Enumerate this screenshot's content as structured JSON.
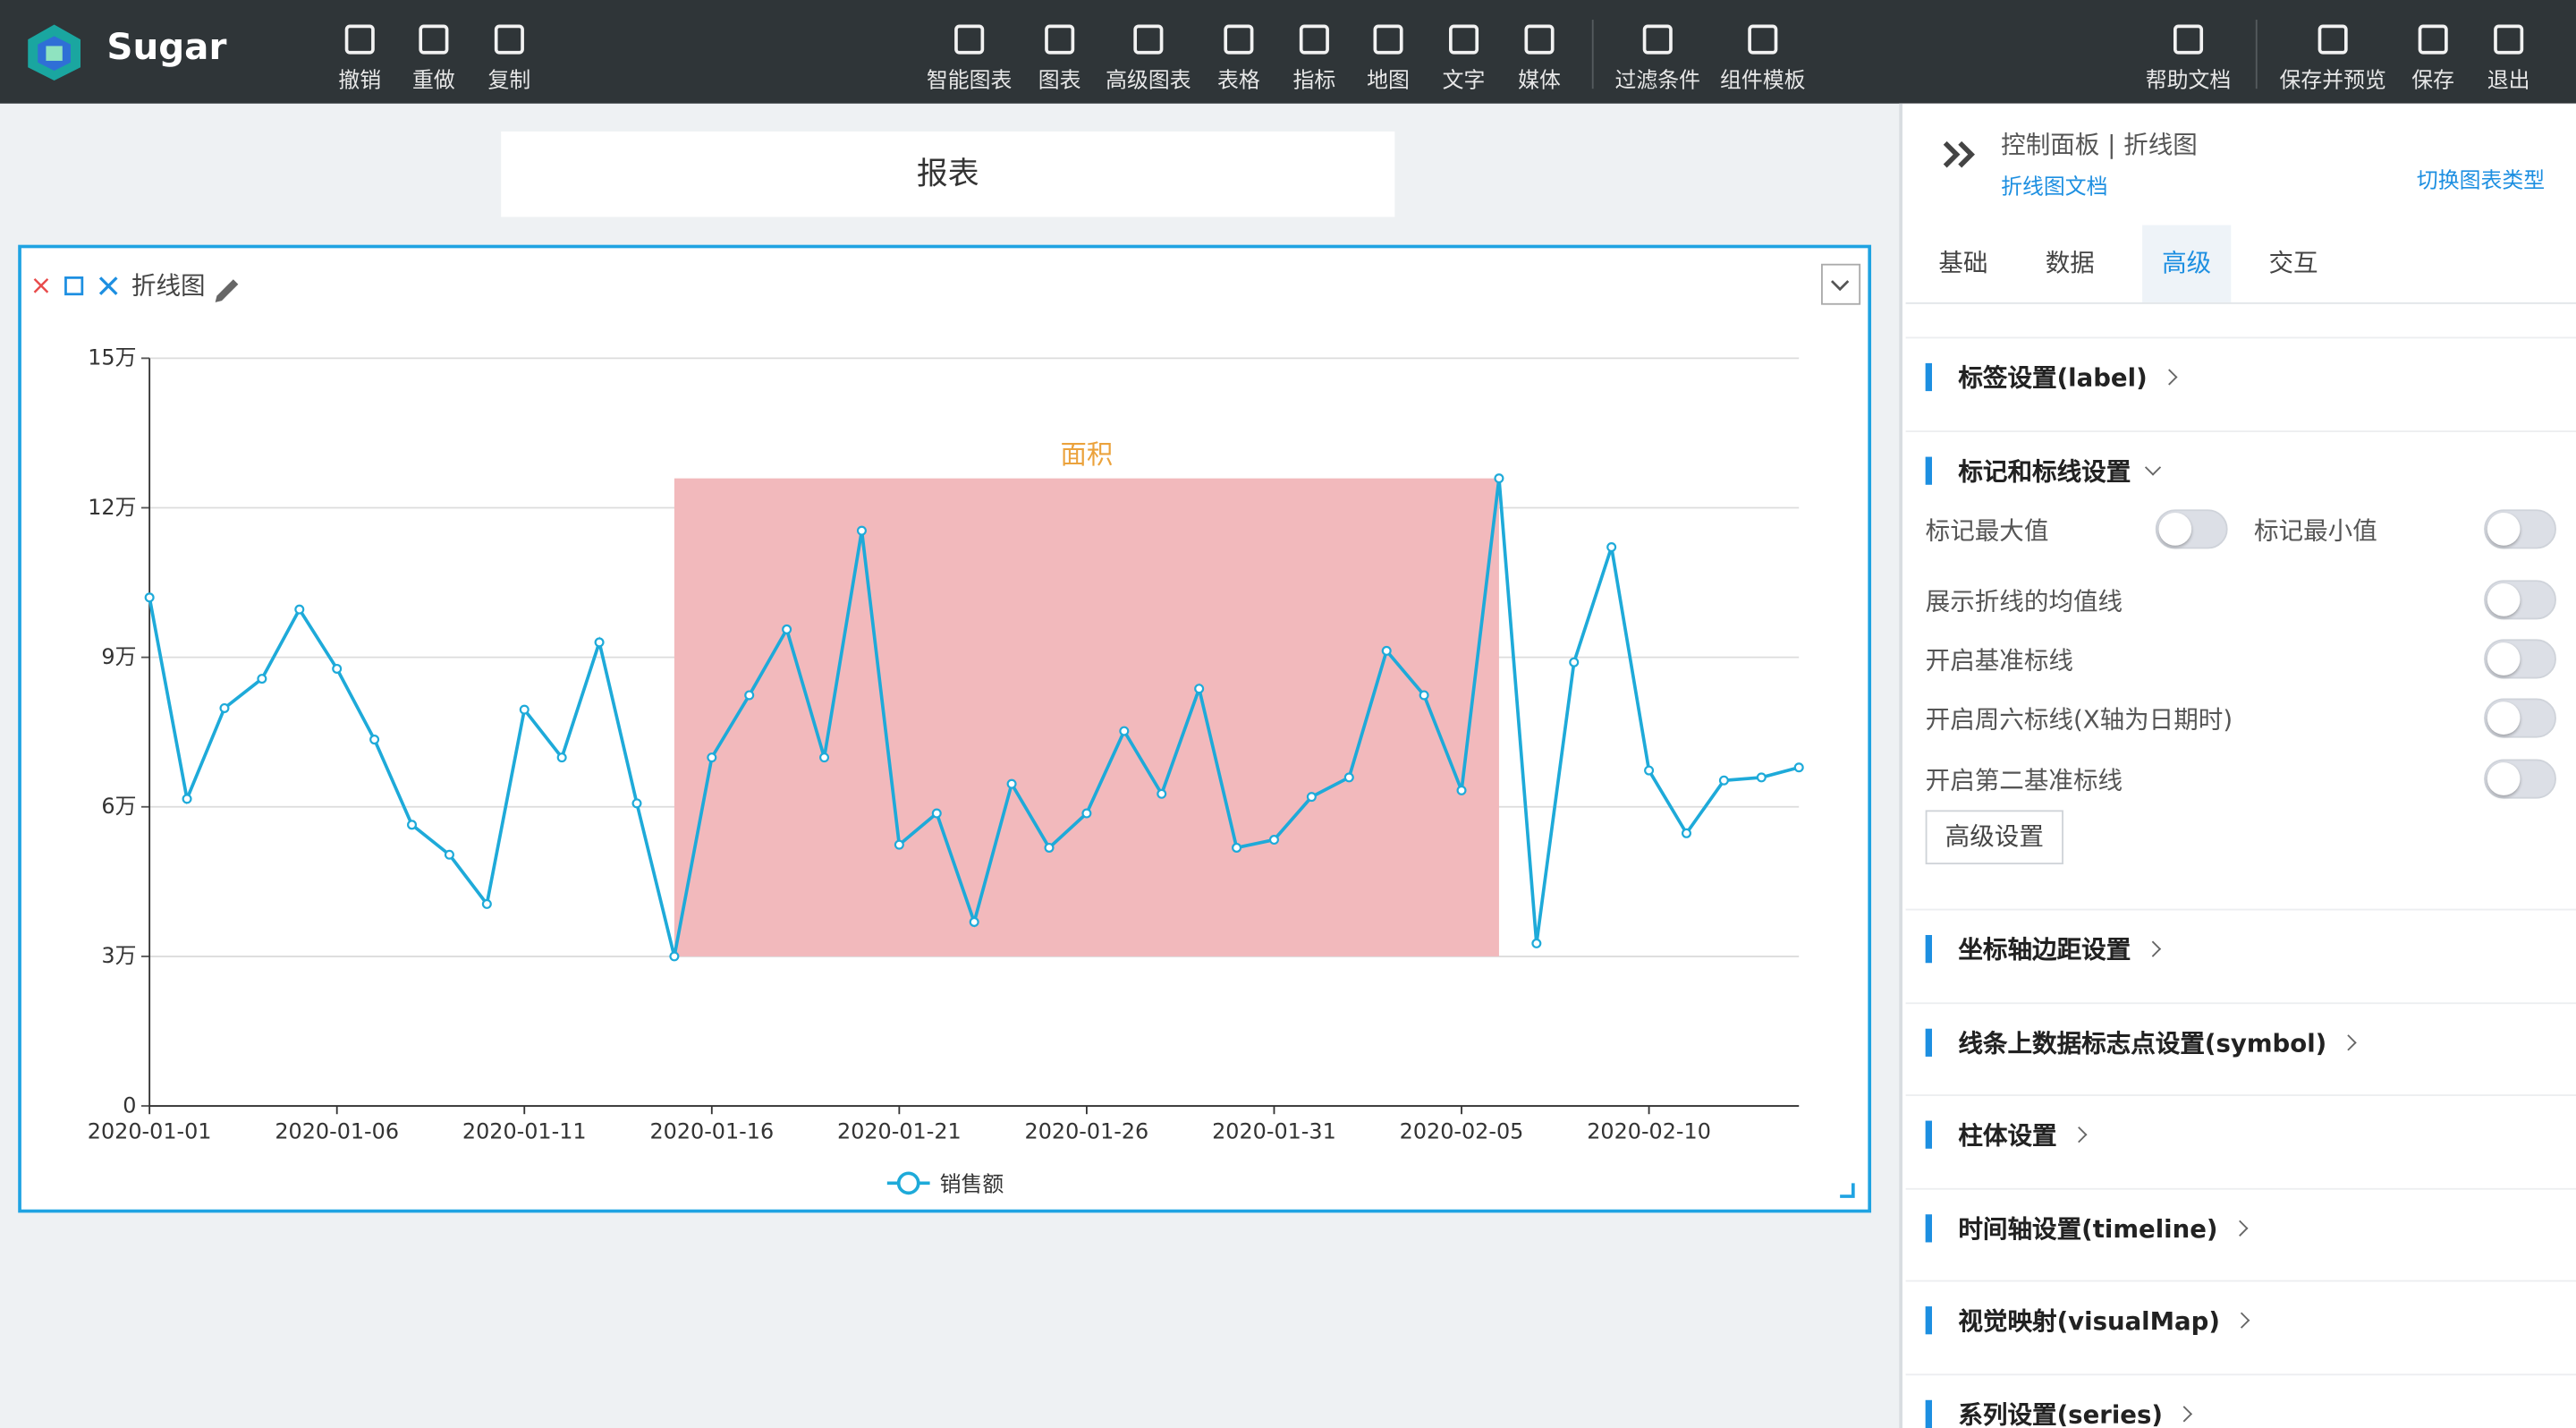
{
  "app": {
    "name": "Sugar"
  },
  "toolbar": {
    "left": [
      "撤销",
      "重做",
      "复制"
    ],
    "center": [
      "智能图表",
      "图表",
      "高级图表",
      "表格",
      "指标",
      "地图",
      "文字",
      "媒体"
    ],
    "center2": [
      "过滤条件",
      "组件模板"
    ],
    "right": [
      "帮助文档"
    ],
    "right2": [
      "保存并预览",
      "保存",
      "退出"
    ]
  },
  "report_title": "报表",
  "widget_title": "折线图",
  "chart_data": {
    "type": "line",
    "x": [
      "2020-01-01",
      "2020-01-02",
      "2020-01-03",
      "2020-01-04",
      "2020-01-05",
      "2020-01-06",
      "2020-01-07",
      "2020-01-08",
      "2020-01-09",
      "2020-01-10",
      "2020-01-11",
      "2020-01-12",
      "2020-01-13",
      "2020-01-14",
      "2020-01-15",
      "2020-01-16",
      "2020-01-17",
      "2020-01-18",
      "2020-01-19",
      "2020-01-20",
      "2020-01-21",
      "2020-01-22",
      "2020-01-23",
      "2020-01-24",
      "2020-01-25",
      "2020-01-26",
      "2020-01-27",
      "2020-01-28",
      "2020-01-29",
      "2020-01-30",
      "2020-01-31",
      "2020-02-01",
      "2020-02-02",
      "2020-02-03",
      "2020-02-04",
      "2020-02-05",
      "2020-02-06",
      "2020-02-07",
      "2020-02-08",
      "2020-02-09",
      "2020-02-10",
      "2020-02-11",
      "2020-02-12",
      "2020-02-13",
      "2020-02-14"
    ],
    "series": [
      {
        "name": "销售额",
        "color": "#1eaad9",
        "values": [
          102000,
          61600,
          79800,
          85700,
          99600,
          87700,
          73500,
          56400,
          50400,
          40500,
          79500,
          69900,
          93000,
          60700,
          30000,
          69900,
          82400,
          95600,
          69900,
          115400,
          52400,
          58700,
          36900,
          64600,
          51800,
          58700,
          75200,
          62600,
          83700,
          51800,
          53400,
          62000,
          65900,
          91300,
          82400,
          63300,
          125900,
          32600,
          89000,
          112100,
          67300,
          54700,
          65300,
          65900,
          67900
        ]
      }
    ],
    "mark_area": {
      "label": "面积",
      "x_from": "2020-01-15",
      "x_to": "2020-02-06",
      "y_from": 30000,
      "y_to": 125900,
      "color": "#f2b9bc",
      "label_color": "#eba23c"
    },
    "ylim": [
      0,
      150000
    ],
    "yticks": [
      {
        "value": 0,
        "label": "0"
      },
      {
        "value": 30000,
        "label": "3万"
      },
      {
        "value": 60000,
        "label": "6万"
      },
      {
        "value": 90000,
        "label": "9万"
      },
      {
        "value": 120000,
        "label": "12万"
      },
      {
        "value": 150000,
        "label": "15万"
      }
    ],
    "xticks": [
      "2020-01-01",
      "2020-01-06",
      "2020-01-11",
      "2020-01-16",
      "2020-01-21",
      "2020-01-26",
      "2020-01-31",
      "2020-02-05",
      "2020-02-10"
    ],
    "grid": true,
    "legend": "bottom"
  },
  "panel": {
    "title": "控制面板 | 折线图",
    "doc_link": "折线图文档",
    "switch": "切换图表类型",
    "tabs": [
      "基础",
      "数据",
      "高级",
      "交互"
    ],
    "active_tab": 2,
    "sections_before": [
      "标签设置(label)"
    ],
    "open_section": "标记和标线设置",
    "toggles": [
      "标记最大值",
      "标记最小值",
      "展示折线的均值线",
      "开启基准标线",
      "开启周六标线(X轴为日期时)",
      "开启第二基准标线"
    ],
    "button": "高级设置",
    "sections_after": [
      "坐标轴边距设置",
      "线条上数据标志点设置(symbol)",
      "柱体设置",
      "时间轴设置(timeline)",
      "视觉映射(visualMap)",
      "系列设置(series)"
    ]
  }
}
